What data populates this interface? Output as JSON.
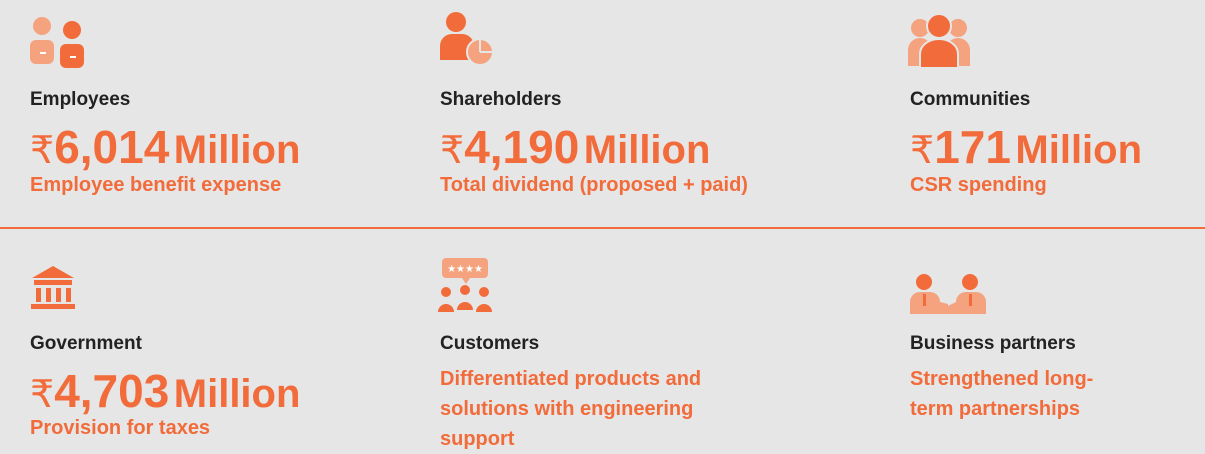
{
  "items": [
    {
      "label": "Employees",
      "currency": "₹",
      "value": "6,014",
      "unit": "Million",
      "description": "Employee benefit expense"
    },
    {
      "label": "Shareholders",
      "currency": "₹",
      "value": "4,190",
      "unit": "Million",
      "description": "Total dividend (proposed + paid)"
    },
    {
      "label": "Communities",
      "currency": "₹",
      "value": "171",
      "unit": "Million",
      "description": "CSR spending"
    },
    {
      "label": "Government",
      "currency": "₹",
      "value": "4,703",
      "unit": "Million",
      "description": "Provision for taxes"
    },
    {
      "label": "Customers",
      "description": "Differentiated products and solutions with engineering support"
    },
    {
      "label": "Business partners",
      "description": "Strengthened long-term partnerships"
    }
  ]
}
